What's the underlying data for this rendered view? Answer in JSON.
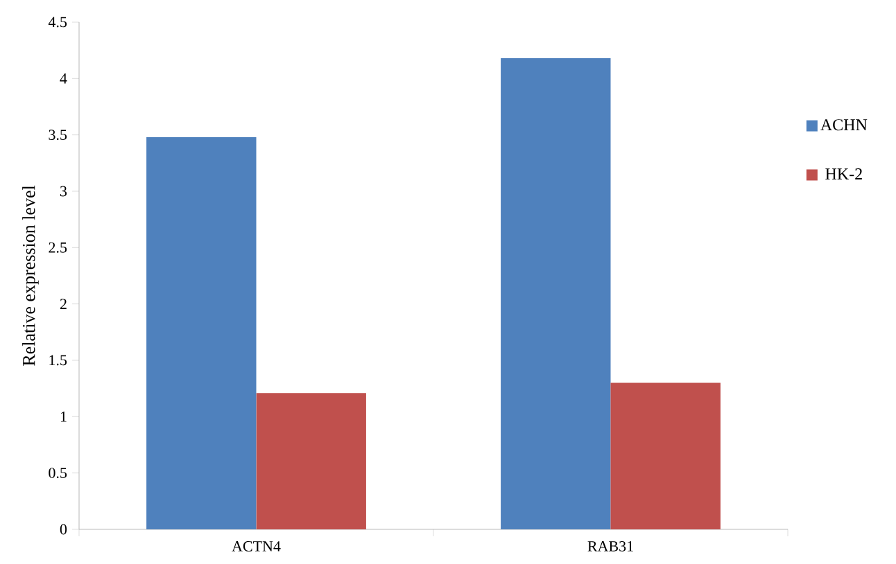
{
  "chart_data": {
    "type": "bar",
    "ylabel": "Relative expression level",
    "categories": [
      "ACTN4",
      "RAB31"
    ],
    "series": [
      {
        "name": "ACHN",
        "color": "#4f81bd",
        "values": [
          3.48,
          4.18
        ]
      },
      {
        "name": "HK-2",
        "color": "#c0504d",
        "values": [
          1.21,
          1.3
        ]
      }
    ],
    "ylim": [
      0,
      4.5
    ],
    "yticks": [
      0,
      0.5,
      1,
      1.5,
      2,
      2.5,
      3,
      3.5,
      4,
      4.5
    ],
    "legend": "right"
  }
}
